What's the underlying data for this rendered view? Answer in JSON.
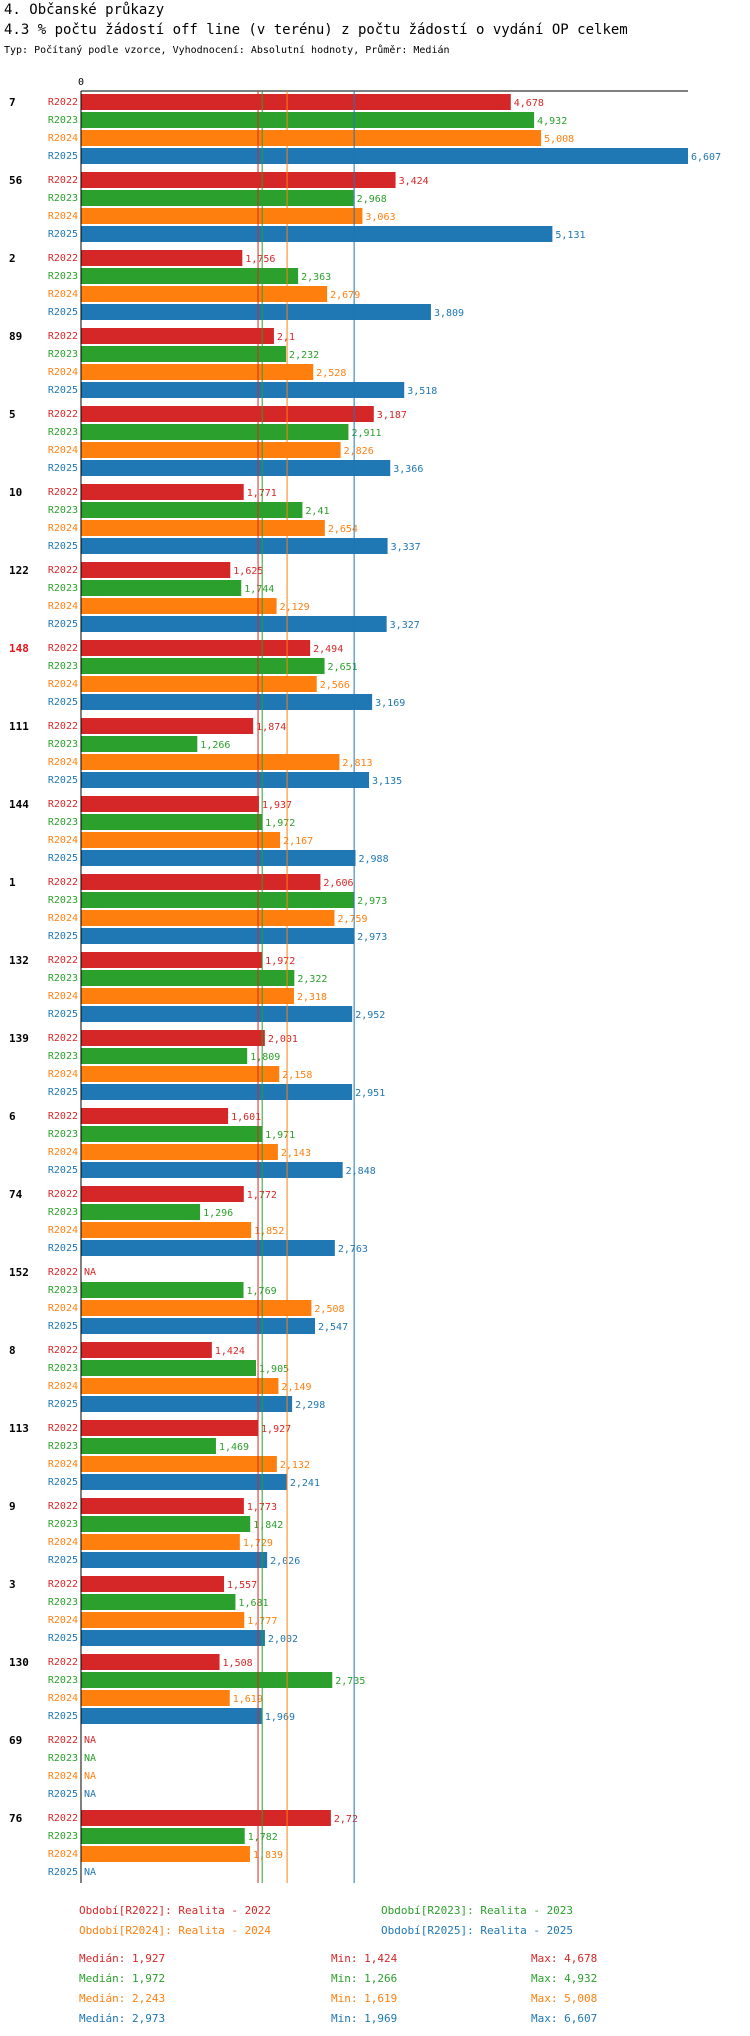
{
  "header": {
    "title": "4. Občanské průkazy",
    "subtitle": "4.3 % počtu žádostí off line (v terénu) z počtu žádostí o vydání OP celkem",
    "description": "Typ: Počítaný podle vzorce, Vyhodnocení: Absolutní hodnoty, Průměr: Medián"
  },
  "colors": {
    "R2022": "#d62728",
    "R2023": "#2ca02c",
    "R2024": "#ff7f0e",
    "R2025": "#1f77b4",
    "highlight": "#e8141a"
  },
  "chart_data": {
    "type": "bar",
    "orientation": "horizontal",
    "x_axis_origin_label": "0",
    "xlim": [
      0,
      6.607
    ],
    "series_names": [
      "R2022",
      "R2023",
      "R2024",
      "R2025"
    ],
    "na_label": "NA",
    "highlighted_category": "148",
    "categories": [
      {
        "name": "7",
        "values": [
          4.678,
          4.932,
          5.008,
          6.607
        ],
        "labels": [
          "4,678",
          "4,932",
          "5,008",
          "6,607"
        ]
      },
      {
        "name": "56",
        "values": [
          3.424,
          2.968,
          3.063,
          5.131
        ],
        "labels": [
          "3,424",
          "2,968",
          "3,063",
          "5,131"
        ]
      },
      {
        "name": "2",
        "values": [
          1.756,
          2.363,
          2.679,
          3.809
        ],
        "labels": [
          "1,756",
          "2,363",
          "2,679",
          "3,809"
        ]
      },
      {
        "name": "89",
        "values": [
          2.1,
          2.232,
          2.528,
          3.518
        ],
        "labels": [
          "2,1",
          "2,232",
          "2,528",
          "3,518"
        ]
      },
      {
        "name": "5",
        "values": [
          3.187,
          2.911,
          2.826,
          3.366
        ],
        "labels": [
          "3,187",
          "2,911",
          "2,826",
          "3,366"
        ]
      },
      {
        "name": "10",
        "values": [
          1.771,
          2.41,
          2.654,
          3.337
        ],
        "labels": [
          "1,771",
          "2,41",
          "2,654",
          "3,337"
        ]
      },
      {
        "name": "122",
        "values": [
          1.625,
          1.744,
          2.129,
          3.327
        ],
        "labels": [
          "1,625",
          "1,744",
          "2,129",
          "3,327"
        ]
      },
      {
        "name": "148",
        "values": [
          2.494,
          2.651,
          2.566,
          3.169
        ],
        "labels": [
          "2,494",
          "2,651",
          "2,566",
          "3,169"
        ]
      },
      {
        "name": "111",
        "values": [
          1.874,
          1.266,
          2.813,
          3.135
        ],
        "labels": [
          "1,874",
          "1,266",
          "2,813",
          "3,135"
        ]
      },
      {
        "name": "144",
        "values": [
          1.937,
          1.972,
          2.167,
          2.988
        ],
        "labels": [
          "1,937",
          "1,972",
          "2,167",
          "2,988"
        ]
      },
      {
        "name": "1",
        "values": [
          2.606,
          2.973,
          2.759,
          2.973
        ],
        "labels": [
          "2,606",
          "2,973",
          "2,759",
          "2,973"
        ]
      },
      {
        "name": "132",
        "values": [
          1.972,
          2.322,
          2.318,
          2.952
        ],
        "labels": [
          "1,972",
          "2,322",
          "2,318",
          "2,952"
        ]
      },
      {
        "name": "139",
        "values": [
          2.001,
          1.809,
          2.158,
          2.951
        ],
        "labels": [
          "2,001",
          "1,809",
          "2,158",
          "2,951"
        ]
      },
      {
        "name": "6",
        "values": [
          1.601,
          1.971,
          2.143,
          2.848
        ],
        "labels": [
          "1,601",
          "1,971",
          "2,143",
          "2,848"
        ]
      },
      {
        "name": "74",
        "values": [
          1.772,
          1.296,
          1.852,
          2.763
        ],
        "labels": [
          "1,772",
          "1,296",
          "1,852",
          "2,763"
        ]
      },
      {
        "name": "152",
        "values": [
          null,
          1.769,
          2.508,
          2.547
        ],
        "labels": [
          "NA",
          "1,769",
          "2,508",
          "2,547"
        ]
      },
      {
        "name": "8",
        "values": [
          1.424,
          1.905,
          2.149,
          2.298
        ],
        "labels": [
          "1,424",
          "1,905",
          "2,149",
          "2,298"
        ]
      },
      {
        "name": "113",
        "values": [
          1.927,
          1.469,
          2.132,
          2.241
        ],
        "labels": [
          "1,927",
          "1,469",
          "2,132",
          "2,241"
        ]
      },
      {
        "name": "9",
        "values": [
          1.773,
          1.842,
          1.729,
          2.026
        ],
        "labels": [
          "1,773",
          "1,842",
          "1,729",
          "2,026"
        ]
      },
      {
        "name": "3",
        "values": [
          1.557,
          1.681,
          1.777,
          2.002
        ],
        "labels": [
          "1,557",
          "1,681",
          "1,777",
          "2,002"
        ]
      },
      {
        "name": "130",
        "values": [
          1.508,
          2.735,
          1.619,
          1.969
        ],
        "labels": [
          "1,508",
          "2,735",
          "1,619",
          "1,969"
        ]
      },
      {
        "name": "69",
        "values": [
          null,
          null,
          null,
          null
        ],
        "labels": [
          "NA",
          "NA",
          "NA",
          "NA"
        ]
      },
      {
        "name": "76",
        "values": [
          2.72,
          1.782,
          1.839,
          null
        ],
        "labels": [
          "2,72",
          "1,782",
          "1,839",
          "NA"
        ]
      }
    ],
    "median_lines": [
      {
        "series": "R2022",
        "value": 1.927
      },
      {
        "series": "R2023",
        "value": 1.972
      },
      {
        "series": "R2024",
        "value": 2.243
      },
      {
        "series": "R2025",
        "value": 2.973
      }
    ],
    "legend": [
      {
        "series": "R2022",
        "text": "Období[R2022]: Realita - 2022"
      },
      {
        "series": "R2023",
        "text": "Období[R2023]: Realita - 2023"
      },
      {
        "series": "R2024",
        "text": "Období[R2024]: Realita - 2024"
      },
      {
        "series": "R2025",
        "text": "Období[R2025]: Realita - 2025"
      }
    ],
    "stats": [
      {
        "series": "R2022",
        "median": "Medián: 1,927",
        "min": "Min: 1,424",
        "max": "Max: 4,678"
      },
      {
        "series": "R2023",
        "median": "Medián: 1,972",
        "min": "Min: 1,266",
        "max": "Max: 4,932"
      },
      {
        "series": "R2024",
        "median": "Medián: 2,243",
        "min": "Min: 1,619",
        "max": "Max: 5,008"
      },
      {
        "series": "R2025",
        "median": "Medián: 2,973",
        "min": "Min: 1,969",
        "max": "Max: 6,607"
      }
    ]
  }
}
